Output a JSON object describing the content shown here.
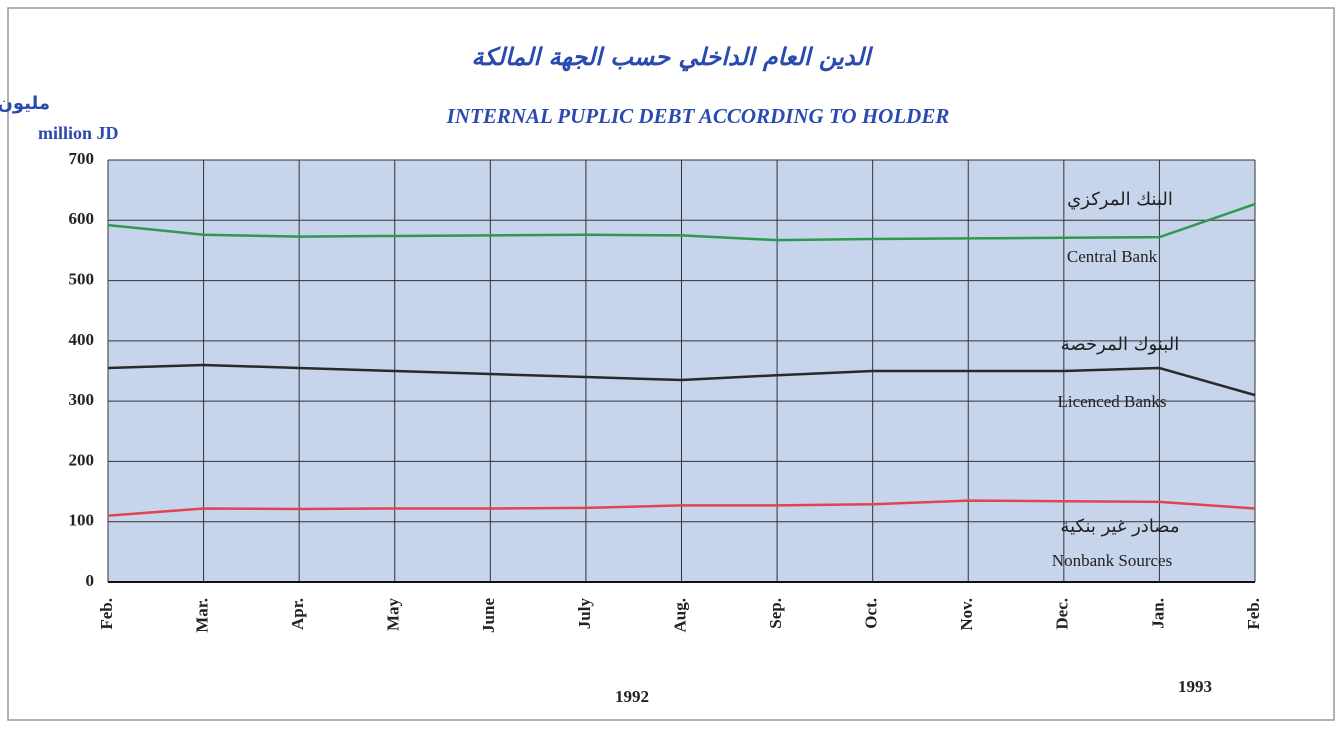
{
  "chart_data": {
    "type": "line",
    "title_ar": "الدين العام الداخلي حسب الجهة المالكة",
    "title": "INTERNAL PUPLIC DEBT ACCORDING TO HOLDER",
    "y_label_ar": "مليون دينار",
    "y_label": "million JD",
    "categories": [
      "Feb.",
      "Mar.",
      "Apr.",
      "May",
      "June",
      "July",
      "Aug.",
      "Sep.",
      "Oct.",
      "Nov.",
      "Dec.",
      "Jan.",
      "Feb."
    ],
    "years": [
      "1992",
      "1993"
    ],
    "ylim": [
      0,
      700
    ],
    "yticks": [
      0,
      100,
      200,
      300,
      400,
      500,
      600,
      700
    ],
    "grid": true,
    "series": [
      {
        "name": "Central Bank",
        "name_ar": "البنك المركزي",
        "color": "#2f9a4f",
        "values": [
          592,
          576,
          573,
          574,
          575,
          576,
          575,
          567,
          569,
          570,
          571,
          572,
          627
        ]
      },
      {
        "name": "Licenced Banks",
        "name_ar": "البنوك المرخصة",
        "color": "#2a2a2a",
        "values": [
          355,
          360,
          355,
          350,
          345,
          340,
          335,
          343,
          350,
          350,
          350,
          355,
          310
        ]
      },
      {
        "name": "Nonbank  Sources",
        "name_ar": "مصادر غير بنكية",
        "color": "#e0454f",
        "values": [
          110,
          122,
          121,
          122,
          122,
          123,
          127,
          127,
          129,
          135,
          134,
          133,
          122
        ]
      }
    ]
  }
}
